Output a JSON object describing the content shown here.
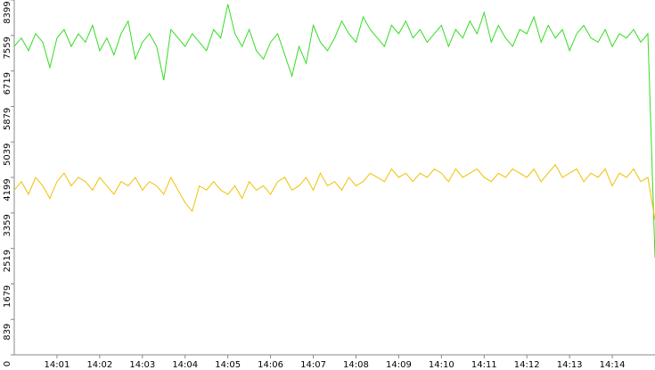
{
  "chart_data": {
    "type": "line",
    "categories": [
      null,
      null,
      null,
      null,
      null,
      null,
      "14:01",
      null,
      null,
      null,
      null,
      null,
      "14:02",
      null,
      null,
      null,
      null,
      null,
      "14:03",
      null,
      null,
      null,
      null,
      null,
      "14:04",
      null,
      null,
      null,
      null,
      null,
      "14:05",
      null,
      null,
      null,
      null,
      null,
      "14:06",
      null,
      null,
      null,
      null,
      null,
      "14:07",
      null,
      null,
      null,
      null,
      null,
      "14:08",
      null,
      null,
      null,
      null,
      null,
      "14:09",
      null,
      null,
      null,
      null,
      null,
      "14:10",
      null,
      null,
      null,
      null,
      null,
      "14:11",
      null,
      null,
      null,
      null,
      null,
      "14:12",
      null,
      null,
      null,
      null,
      null,
      "14:13",
      null,
      null,
      null,
      null,
      null,
      "14:14",
      null,
      null,
      null,
      null,
      null,
      null
    ],
    "series": [
      {
        "color": "#33dd22",
        "values": [
          7300,
          7500,
          7200,
          7600,
          7400,
          6800,
          7500,
          7700,
          7300,
          7600,
          7400,
          7800,
          7200,
          7500,
          7100,
          7600,
          7900,
          7000,
          7400,
          7600,
          7300,
          6500,
          7700,
          7500,
          7300,
          7600,
          7400,
          7200,
          7700,
          7500,
          8300,
          7600,
          7300,
          7700,
          7200,
          7000,
          7400,
          7600,
          7100,
          6600,
          7300,
          6900,
          7800,
          7400,
          7200,
          7500,
          7900,
          7600,
          7400,
          8000,
          7700,
          7500,
          7300,
          7800,
          7600,
          7900,
          7500,
          7700,
          7400,
          7600,
          7800,
          7300,
          7700,
          7500,
          7900,
          7600,
          8100,
          7400,
          7800,
          7500,
          7300,
          7700,
          7600,
          8000,
          7400,
          7800,
          7500,
          7700,
          7200,
          7600,
          7800,
          7500,
          7400,
          7700,
          7300,
          7600,
          7500,
          7700,
          7400,
          7600,
          2300
        ]
      },
      {
        "color": "#f0c000",
        "values": [
          3900,
          4100,
          3800,
          4200,
          4000,
          3700,
          4100,
          4300,
          4000,
          4200,
          4100,
          3900,
          4200,
          4000,
          3800,
          4100,
          4000,
          4200,
          3900,
          4100,
          4000,
          3800,
          4200,
          3900,
          3600,
          3400,
          4000,
          3900,
          4100,
          3900,
          3800,
          4000,
          3700,
          4100,
          3900,
          4000,
          3800,
          4100,
          4200,
          3900,
          4000,
          4200,
          3900,
          4300,
          4000,
          4100,
          3900,
          4200,
          4000,
          4100,
          4300,
          4200,
          4100,
          4400,
          4200,
          4300,
          4100,
          4300,
          4200,
          4400,
          4300,
          4100,
          4400,
          4200,
          4300,
          4400,
          4200,
          4100,
          4300,
          4200,
          4400,
          4300,
          4200,
          4400,
          4100,
          4300,
          4500,
          4200,
          4300,
          4400,
          4100,
          4300,
          4200,
          4400,
          4000,
          4300,
          4200,
          4400,
          4100,
          4200,
          3200
        ]
      }
    ],
    "ylim": [
      0,
      8399
    ],
    "yticks": [
      0,
      839,
      1679,
      2519,
      3359,
      4199,
      5039,
      5879,
      6719,
      7559,
      8399
    ]
  }
}
